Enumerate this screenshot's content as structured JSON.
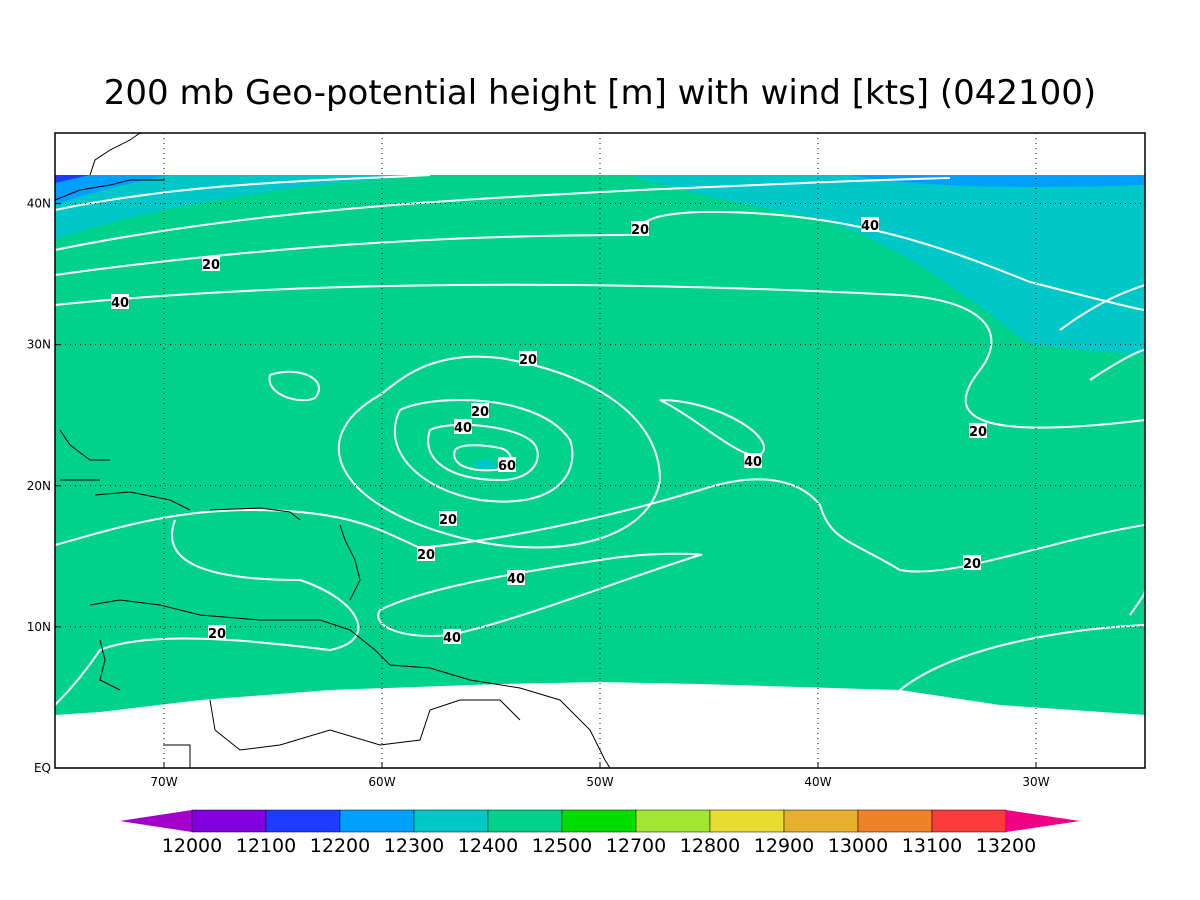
{
  "title": "200 mb Geo-potential height [m] with wind [kts] (042100)",
  "map": {
    "xlim": [
      -75,
      -25
    ],
    "ylim": [
      0,
      45
    ],
    "xticks": [
      {
        "value": -70,
        "label": "70W"
      },
      {
        "value": -60,
        "label": "60W"
      },
      {
        "value": -50,
        "label": "50W"
      },
      {
        "value": -40,
        "label": "40W"
      },
      {
        "value": -30,
        "label": "30W"
      }
    ],
    "yticks": [
      {
        "value": 0,
        "label": "EQ"
      },
      {
        "value": 10,
        "label": "10N"
      },
      {
        "value": 20,
        "label": "20N"
      },
      {
        "value": 30,
        "label": "30N"
      },
      {
        "value": 40,
        "label": "40N"
      }
    ],
    "grid": true,
    "contour_labels": [
      "20",
      "40",
      "20",
      "20",
      "40",
      "20",
      "60",
      "40",
      "20",
      "20",
      "40",
      "40",
      "20",
      "20",
      "40",
      "20"
    ]
  },
  "colorbar": {
    "levels": [
      12000,
      12100,
      12200,
      12300,
      12400,
      12500,
      12700,
      12800,
      12900,
      13000,
      13100,
      13200
    ],
    "colors": [
      "#a000c8",
      "#8200dc",
      "#1e3cff",
      "#00a0ff",
      "#00c8c8",
      "#00d28c",
      "#00dc00",
      "#a0e632",
      "#e6dc32",
      "#e6af2d",
      "#f08228",
      "#fa3c3c",
      "#f00082"
    ]
  }
}
